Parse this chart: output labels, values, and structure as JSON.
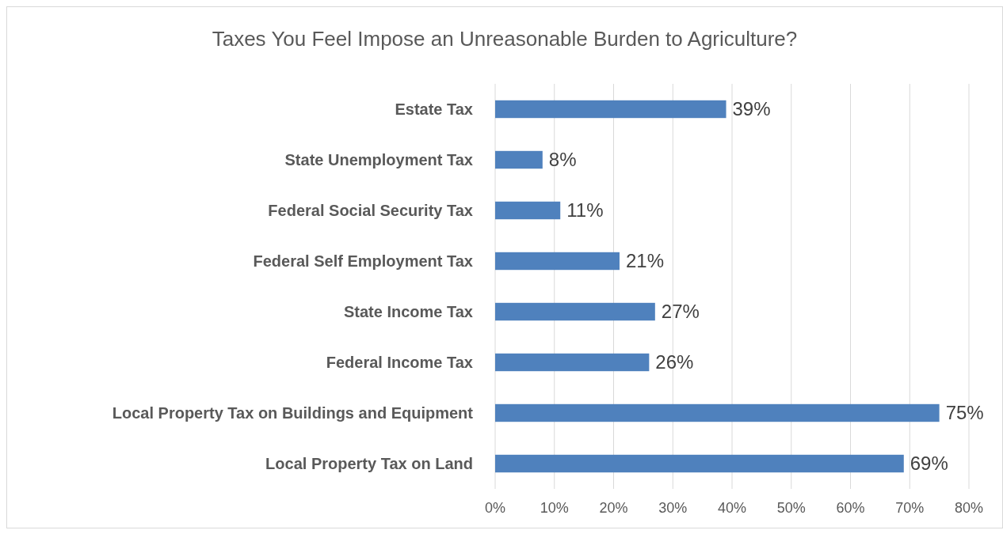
{
  "chart_data": {
    "type": "bar",
    "orientation": "horizontal",
    "title": "Taxes You Feel Impose an Unreasonable Burden to Agriculture?",
    "categories": [
      "Estate Tax",
      "State Unemployment Tax",
      "Federal Social Security Tax",
      "Federal Self Employment Tax",
      "State Income Tax",
      "Federal Income Tax",
      "Local Property Tax on Buildings and Equipment",
      "Local Property Tax on Land"
    ],
    "values": [
      39,
      8,
      11,
      21,
      27,
      26,
      75,
      69
    ],
    "value_labels": [
      "39%",
      "8%",
      "11%",
      "21%",
      "27%",
      "26%",
      "75%",
      "69%"
    ],
    "color": "#4f81bd",
    "xlim": [
      0,
      80
    ],
    "xticks": [
      {
        "value": 0,
        "label": "0%"
      },
      {
        "value": 10,
        "label": "10%"
      },
      {
        "value": 20,
        "label": "20%"
      },
      {
        "value": 30,
        "label": "30%"
      },
      {
        "value": 40,
        "label": "40%"
      },
      {
        "value": 50,
        "label": "50%"
      },
      {
        "value": 60,
        "label": "60%"
      },
      {
        "value": 70,
        "label": "70%"
      },
      {
        "value": 80,
        "label": "80%"
      }
    ],
    "grid": "x"
  }
}
